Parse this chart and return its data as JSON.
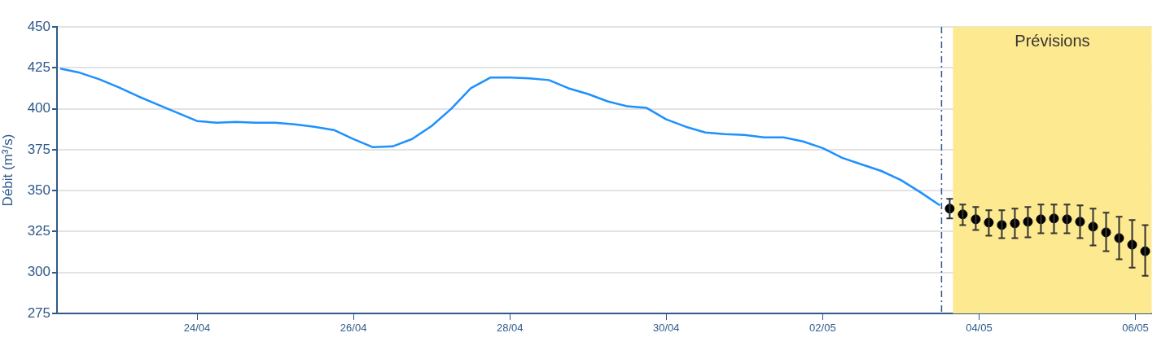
{
  "chart_data": {
    "type": "line",
    "ylabel": "Débit (m³/s)",
    "xlim": [
      "--04-22T05:00",
      "--05-06T05:00"
    ],
    "xticks": [
      {
        "value": "--04-24",
        "label": "24/04"
      },
      {
        "value": "--04-26",
        "label": "26/04"
      },
      {
        "value": "--04-28",
        "label": "28/04"
      },
      {
        "value": "--04-30",
        "label": "30/04"
      },
      {
        "value": "--05-02",
        "label": "02/05"
      },
      {
        "value": "--05-04",
        "label": "04/05"
      },
      {
        "value": "--05-06",
        "label": "06/05"
      }
    ],
    "ylim": [
      275,
      450
    ],
    "yticks": [
      275,
      300,
      325,
      350,
      375,
      400,
      425,
      450
    ],
    "grid": "y",
    "legend": false,
    "series": [
      {
        "type": "line",
        "color": "#1e90ff",
        "marker": "none",
        "line_style": "solid",
        "x": [
          "--04-22T06:00",
          "--04-22T12:00",
          "--04-22T18:00",
          "--04-23T00:00",
          "--04-23T06:00",
          "--04-23T12:00",
          "--04-23T18:00",
          "--04-24T00:00",
          "--04-24T06:00",
          "--04-24T12:00",
          "--04-24T18:00",
          "--04-25T00:00",
          "--04-25T06:00",
          "--04-25T12:00",
          "--04-25T18:00",
          "--04-26T00:00",
          "--04-26T06:00",
          "--04-26T12:00",
          "--04-26T18:00",
          "--04-27T00:00",
          "--04-27T06:00",
          "--04-27T12:00",
          "--04-27T18:00",
          "--04-28T00:00",
          "--04-28T06:00",
          "--04-28T12:00",
          "--04-28T18:00",
          "--04-29T00:00",
          "--04-29T06:00",
          "--04-29T12:00",
          "--04-29T18:00",
          "--04-30T00:00",
          "--04-30T06:00",
          "--04-30T12:00",
          "--04-30T18:00",
          "--05-01T00:00",
          "--05-01T06:00",
          "--05-01T12:00",
          "--05-01T18:00",
          "--05-02T00:00",
          "--05-02T06:00",
          "--05-02T12:00",
          "--05-02T18:00",
          "--05-03T00:00",
          "--05-03T06:00",
          "--05-03T12:00"
        ],
        "values": [
          424.5,
          422,
          418,
          413,
          407.5,
          402.5,
          397.5,
          392.5,
          391.5,
          392,
          391.5,
          391.5,
          390.5,
          389,
          387,
          381.5,
          376.5,
          377,
          381.5,
          389.5,
          400,
          412.5,
          419,
          419,
          418.5,
          417.5,
          412.5,
          409,
          404.5,
          401.5,
          400.5,
          393.5,
          389,
          385.5,
          384.5,
          384,
          382.5,
          382.5,
          380,
          376,
          370,
          366,
          362,
          356.5,
          349,
          341
        ]
      },
      {
        "type": "scatter",
        "color": "#000000",
        "marker": "circle",
        "x": [
          "--05-03T15:00",
          "--05-03T19:00",
          "--05-03T23:00",
          "--05-04T03:00",
          "--05-04T07:00",
          "--05-04T11:00",
          "--05-04T15:00",
          "--05-04T19:00",
          "--05-04T23:00",
          "--05-05T03:00",
          "--05-05T07:00",
          "--05-05T11:00",
          "--05-05T15:00",
          "--05-05T19:00",
          "--05-05T23:00",
          "--05-06T03:00"
        ],
        "values": [
          339,
          335.5,
          332.5,
          330.5,
          329,
          330,
          331,
          332.5,
          333,
          332.5,
          331,
          328,
          324.5,
          321,
          317,
          313
        ],
        "errors": [
          [
            333,
            345
          ],
          [
            329,
            341.5
          ],
          [
            326,
            340
          ],
          [
            322.5,
            338
          ],
          [
            321,
            338
          ],
          [
            321,
            339
          ],
          [
            321.5,
            340
          ],
          [
            324,
            341.5
          ],
          [
            324,
            341.5
          ],
          [
            324,
            341.5
          ],
          [
            321,
            341
          ],
          [
            316.5,
            339
          ],
          [
            313,
            336.5
          ],
          [
            308,
            334
          ],
          [
            303,
            332
          ],
          [
            298,
            329
          ]
        ]
      }
    ],
    "ref_lines": [
      {
        "axis": "x",
        "value": "--05-03T12:30",
        "color": "#2f5a8a",
        "line_style": "dashed"
      }
    ],
    "bands": [
      {
        "axis": "x",
        "from": "--05-03T16:00",
        "to": "--05-06T05:00",
        "label": "Prévisions",
        "color": "#fde98f"
      }
    ]
  }
}
